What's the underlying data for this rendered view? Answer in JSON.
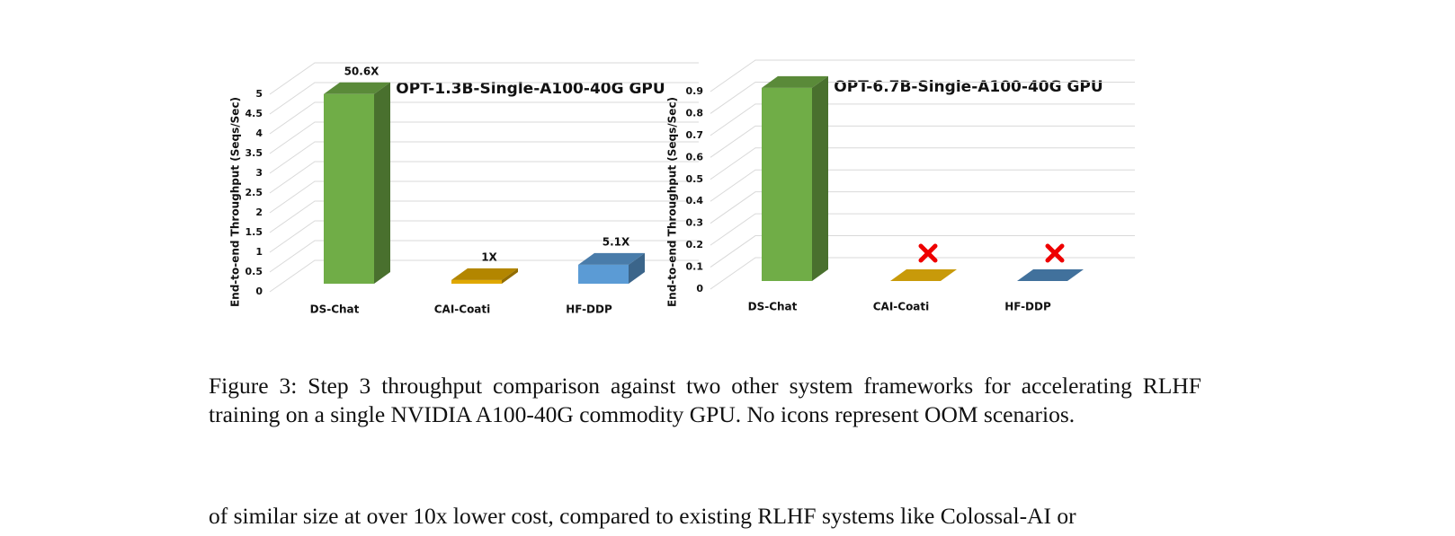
{
  "chart_data": [
    {
      "type": "bar",
      "title": "OPT-1.3B-Single-A100-40G  GPU",
      "ylabel": "End-to-end Throughput (Seqs/Sec)",
      "categories": [
        "DS-Chat",
        "CAI-Coati",
        "HF-DDP"
      ],
      "values": [
        4.8,
        0.095,
        0.48
      ],
      "colors": [
        "#70ad47",
        "#e0a800",
        "#5b9bd5"
      ],
      "speedup_labels": [
        "50.6X",
        "1X",
        "5.1X"
      ],
      "ylim": [
        0,
        5
      ],
      "yticks": [
        0,
        0.5,
        1,
        1.5,
        2,
        2.5,
        3,
        3.5,
        4,
        4.5,
        5
      ],
      "grid": true
    },
    {
      "type": "bar",
      "title": "OPT-6.7B-Single-A100-40G  GPU",
      "ylabel": "End-to-end Throughput (Seqs/Sec)",
      "categories": [
        "DS-Chat",
        "CAI-Coati",
        "HF-DDP"
      ],
      "values": [
        0.88,
        null,
        null
      ],
      "colors": [
        "#70ad47",
        "#c89a0a",
        "#41719c"
      ],
      "ylim": [
        0,
        0.9
      ],
      "yticks": [
        0,
        0.1,
        0.2,
        0.3,
        0.4,
        0.5,
        0.6,
        0.7,
        0.8,
        0.9
      ],
      "grid": true
    }
  ],
  "caption": "Figure 3: Step 3 throughput comparison against two other system frameworks for accelerating RLHF training on a single NVIDIA A100-40G commodity GPU. No icons represent OOM scenarios.",
  "body_text": "of similar size at over 10x lower cost, compared to existing RLHF systems like Colossal-AI or"
}
